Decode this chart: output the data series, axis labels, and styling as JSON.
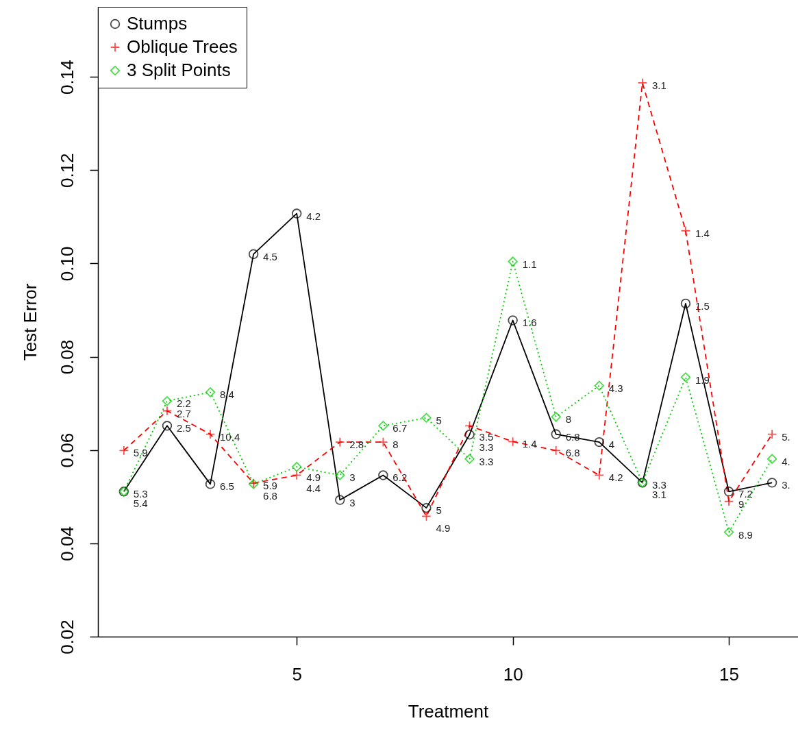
{
  "chart_data": {
    "type": "line",
    "xlabel": "Treatment",
    "ylabel": "Test Error",
    "x": [
      1,
      2,
      3,
      4,
      5,
      6,
      7,
      8,
      9,
      10,
      11,
      12,
      13,
      14,
      15,
      16
    ],
    "xlim": [
      0.4,
      16.6
    ],
    "xticks": [
      5,
      10,
      15
    ],
    "ylim": [
      0.02,
      0.155
    ],
    "yticks": [
      {
        "value": 0.02,
        "label": "0.02"
      },
      {
        "value": 0.04,
        "label": "0.04"
      },
      {
        "value": 0.06,
        "label": "0.06"
      },
      {
        "value": 0.08,
        "label": "0.08"
      },
      {
        "value": 0.1,
        "label": "0.10"
      },
      {
        "value": 0.12,
        "label": "0.12"
      },
      {
        "value": 0.14,
        "label": "0.14"
      }
    ],
    "legend": "top left",
    "series": [
      {
        "name": "Stumps",
        "color": "#000000",
        "marker": "circle",
        "line_style": "solid",
        "values": [
          0.0511,
          0.0652,
          0.0527,
          0.102,
          0.1107,
          0.0493,
          0.0546,
          0.0476,
          0.0633,
          0.0878,
          0.0634,
          0.0617,
          0.053,
          0.0914,
          0.0511,
          0.053
        ]
      },
      {
        "name": "Oblique Trees",
        "color": "#ff0000",
        "marker": "cross",
        "line_style": "dashed",
        "values": [
          0.0599,
          0.0684,
          0.0634,
          0.0529,
          0.0546,
          0.0617,
          0.0617,
          0.0458,
          0.0652,
          0.0618,
          0.0599,
          0.0546,
          0.1387,
          0.107,
          0.049,
          0.0634
        ]
      },
      {
        "name": "3 Split Points",
        "color": "#00cd00",
        "marker": "diamond",
        "line_style": "dotted",
        "values": [
          0.0511,
          0.0705,
          0.0724,
          0.0527,
          0.0564,
          0.0546,
          0.0652,
          0.0669,
          0.0581,
          0.1004,
          0.0671,
          0.0738,
          0.053,
          0.0756,
          0.0424,
          0.0581
        ]
      }
    ],
    "annotations": [
      {
        "text": "5.3",
        "x": 1,
        "y": 0.0511
      },
      {
        "text": "2.5",
        "x": 2,
        "y": 0.0652
      },
      {
        "text": "6.5",
        "x": 3,
        "y": 0.0527
      },
      {
        "text": "4.5",
        "x": 4,
        "y": 0.102
      },
      {
        "text": "4.2",
        "x": 5,
        "y": 0.1107
      },
      {
        "text": "3",
        "x": 6,
        "y": 0.0493
      },
      {
        "text": "6.2",
        "x": 7,
        "y": 0.0546
      },
      {
        "text": "5",
        "x": 8,
        "y": 0.0476
      },
      {
        "text": "3.5",
        "x": 9,
        "y": 0.0633
      },
      {
        "text": "1.6",
        "x": 10,
        "y": 0.0878
      },
      {
        "text": "6.8",
        "x": 11,
        "y": 0.0634
      },
      {
        "text": "4",
        "x": 12,
        "y": 0.0617
      },
      {
        "text": "3.3",
        "x": 13,
        "y": 0.053
      },
      {
        "text": "1.5",
        "x": 14,
        "y": 0.0914
      },
      {
        "text": "7.2",
        "x": 15,
        "y": 0.0511
      },
      {
        "text": "3.",
        "x": 16,
        "y": 0.053
      },
      {
        "text": "5.9",
        "x": 1,
        "y": 0.0599
      },
      {
        "text": "2.7",
        "x": 2,
        "y": 0.0684
      },
      {
        "text": "10.4",
        "x": 3,
        "y": 0.0634
      },
      {
        "text": "5.9",
        "x": 4,
        "y": 0.0529
      },
      {
        "text": "4.9",
        "x": 5,
        "y": 0.0546
      },
      {
        "text": "2.8",
        "x": 6,
        "y": 0.0617
      },
      {
        "text": "8",
        "x": 7,
        "y": 0.0617
      },
      {
        "text": "4.9",
        "x": 8,
        "y": 0.0458
      },
      {
        "text": "3.3",
        "x": 9,
        "y": 0.0652
      },
      {
        "text": "1.4",
        "x": 10,
        "y": 0.0618
      },
      {
        "text": "6.8",
        "x": 11,
        "y": 0.0599
      },
      {
        "text": "4.2",
        "x": 12,
        "y": 0.0546
      },
      {
        "text": "3.1",
        "x": 13,
        "y": 0.1387
      },
      {
        "text": "1.4",
        "x": 14,
        "y": 0.107
      },
      {
        "text": "9",
        "x": 15,
        "y": 0.049
      },
      {
        "text": "5.",
        "x": 16,
        "y": 0.0634
      },
      {
        "text": "5.4",
        "x": 1,
        "y": 0.0511
      },
      {
        "text": "2.2",
        "x": 2,
        "y": 0.0705
      },
      {
        "text": "8.4",
        "x": 3,
        "y": 0.0724
      },
      {
        "text": "6.8",
        "x": 4,
        "y": 0.0527
      },
      {
        "text": "4.4",
        "x": 5,
        "y": 0.0564
      },
      {
        "text": "3",
        "x": 6,
        "y": 0.0546
      },
      {
        "text": "6.7",
        "x": 7,
        "y": 0.0652
      },
      {
        "text": "5",
        "x": 8,
        "y": 0.0669
      },
      {
        "text": "3.3",
        "x": 9,
        "y": 0.0581
      },
      {
        "text": "1.1",
        "x": 10,
        "y": 0.1004
      },
      {
        "text": "8",
        "x": 11,
        "y": 0.0671
      },
      {
        "text": "4.3",
        "x": 12,
        "y": 0.0738
      },
      {
        "text": "3.1",
        "x": 13,
        "y": 0.053
      },
      {
        "text": "1.9",
        "x": 14,
        "y": 0.0756
      },
      {
        "text": "8.9",
        "x": 15,
        "y": 0.0424
      },
      {
        "text": "4.",
        "x": 16,
        "y": 0.0581
      }
    ]
  }
}
